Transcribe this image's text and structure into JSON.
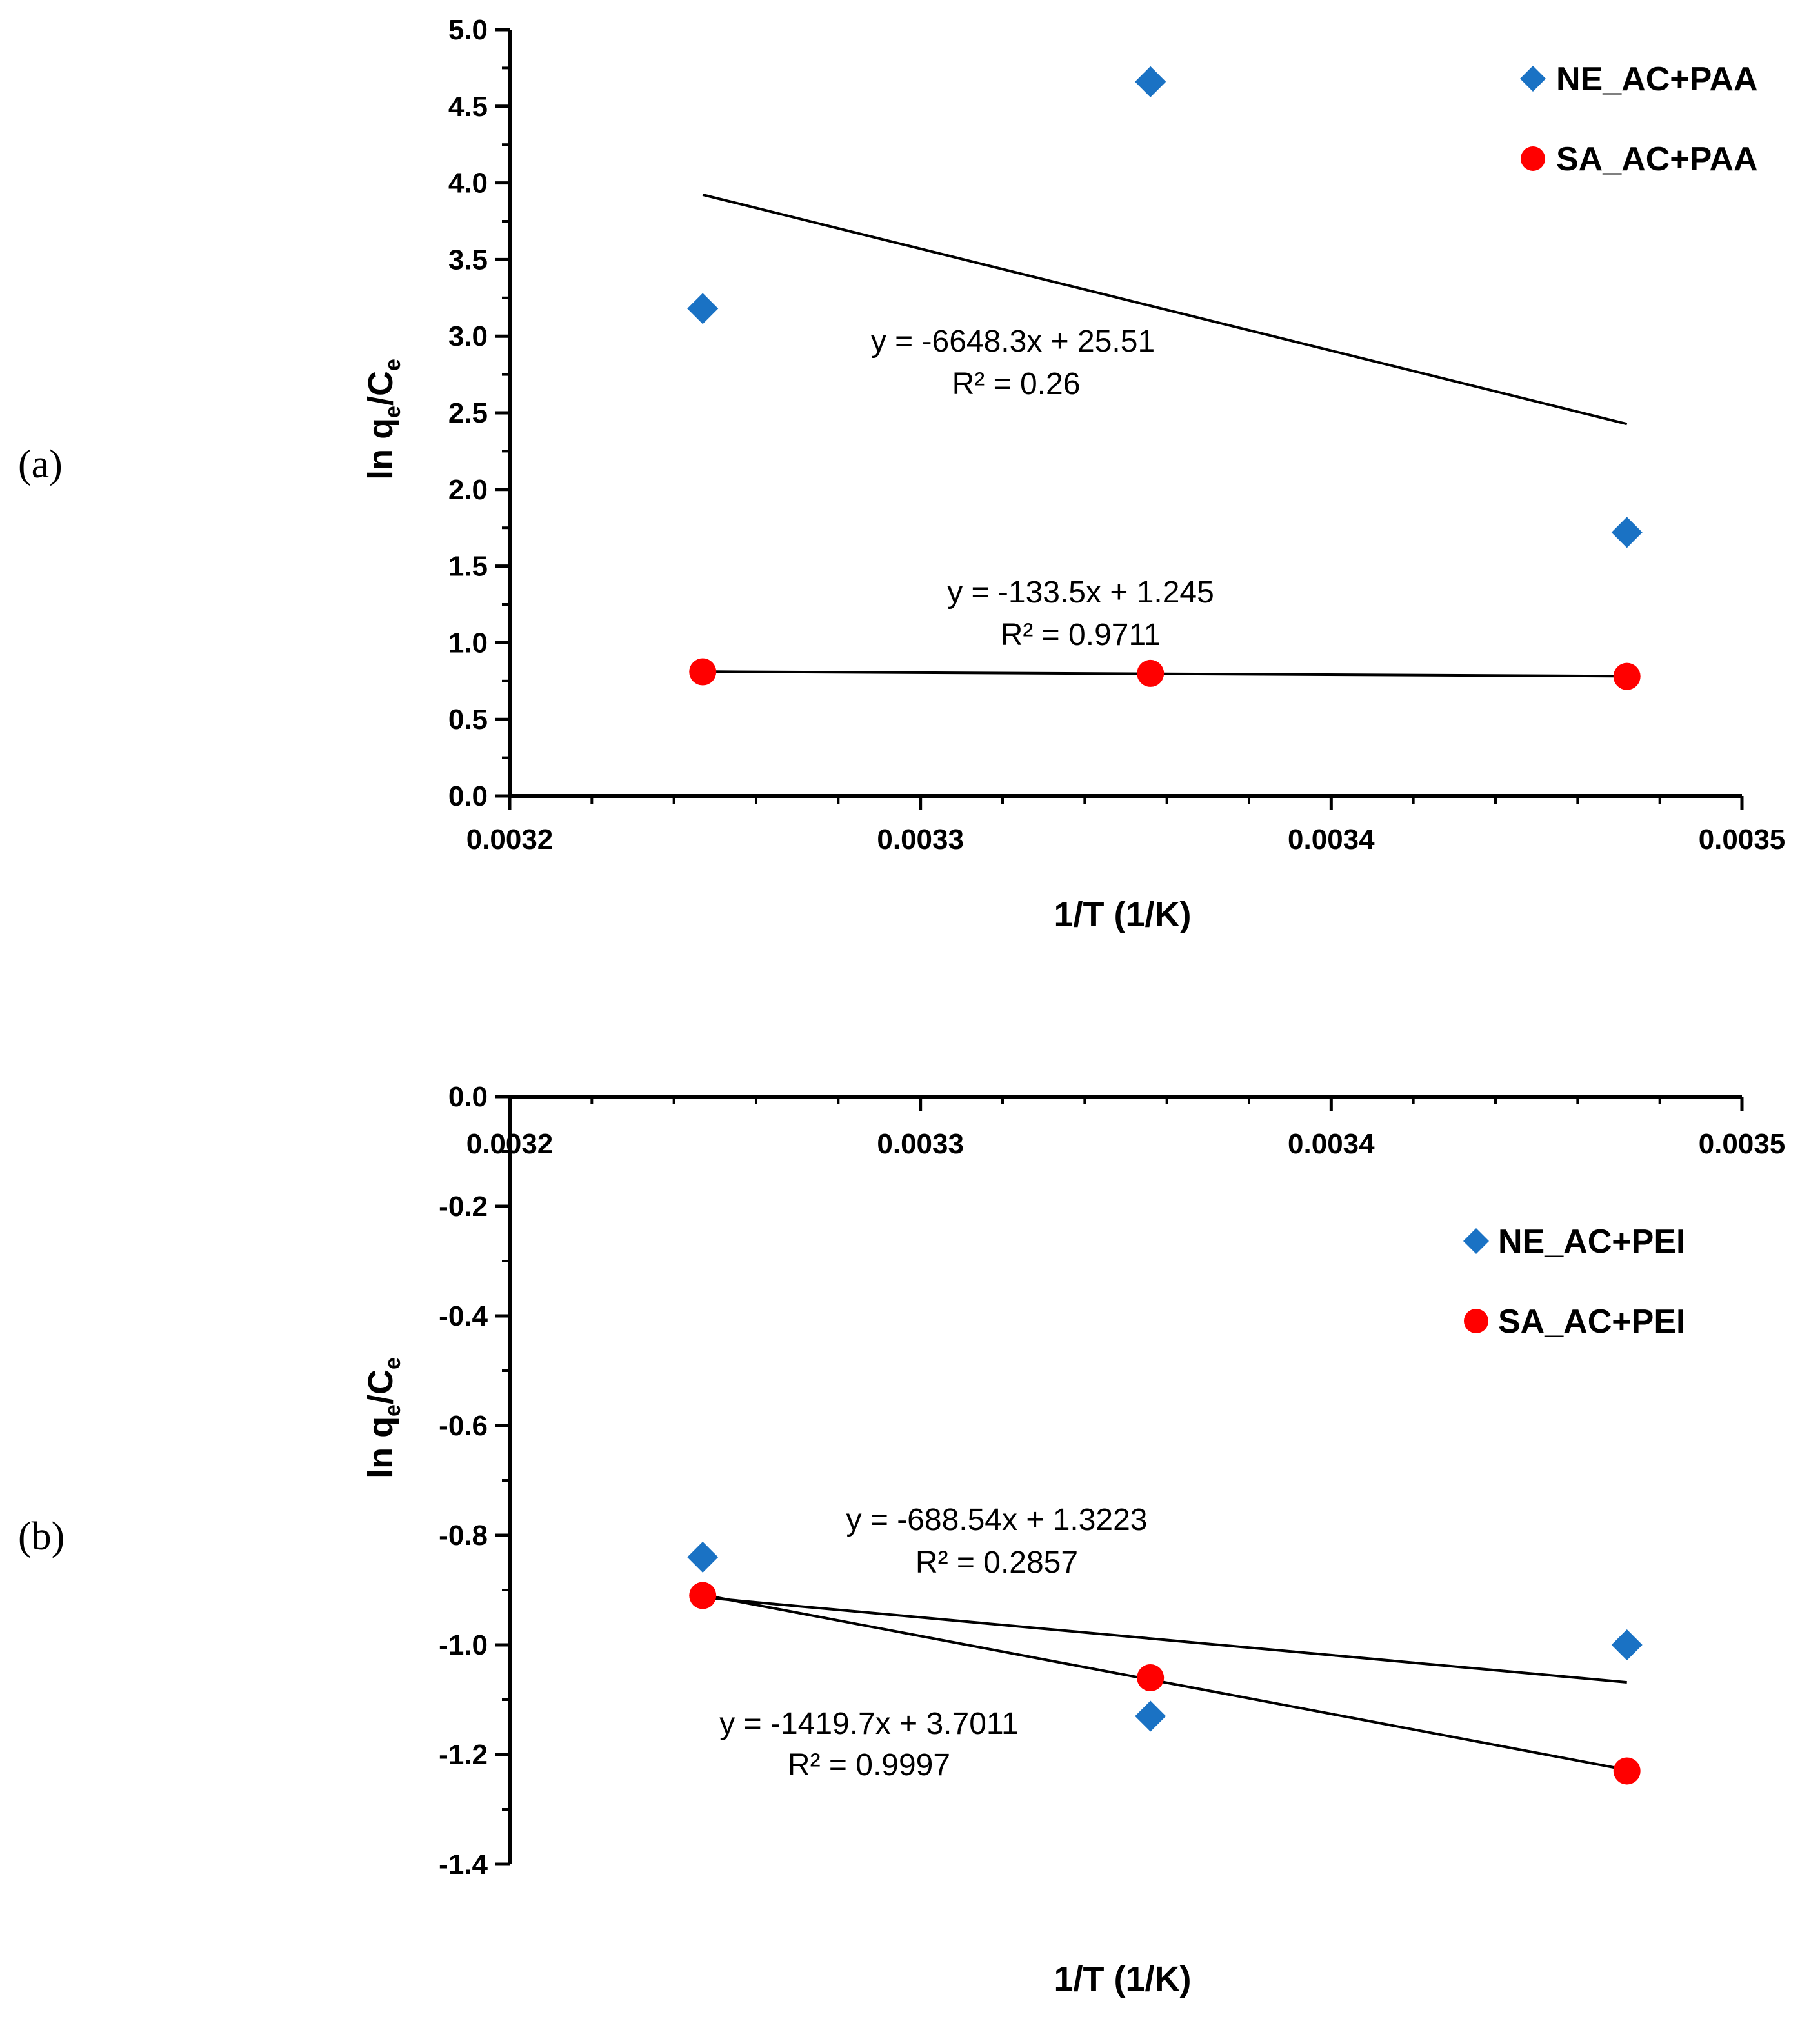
{
  "colors": {
    "series_ne": "#1a72c4",
    "series_sa": "#ff0000",
    "axis": "#000000",
    "trendline": "#000000"
  },
  "chart_data": [
    {
      "type": "scatter",
      "panel_label": "(a)",
      "xlabel": "1/T (1/K)",
      "ylabel_main": "ln q",
      "ylabel_sub1": "e",
      "ylabel_mid": "/C",
      "ylabel_sub2": "e",
      "xlim": [
        0.0032,
        0.0035
      ],
      "ylim": [
        0.0,
        5.0
      ],
      "x_ticks": [
        "0.0032",
        "0.0033",
        "0.0034",
        "0.0035"
      ],
      "y_ticks": [
        "5.0",
        "4.5",
        "4.0",
        "3.5",
        "3.0",
        "2.5",
        "2.0",
        "1.5",
        "1.0",
        "0.5",
        "0.0"
      ],
      "legend_position": "top-right",
      "series": [
        {
          "name": "NE_AC+PAA",
          "marker": "diamond",
          "x": [
            0.003247,
            0.003356,
            0.003472
          ],
          "y": [
            3.18,
            4.66,
            1.72
          ],
          "trendline": {
            "equation": "y = -6648.3x + 25.51",
            "r2": "R² = 0.26",
            "slope": -6648.3,
            "intercept": 25.51
          }
        },
        {
          "name": "SA_AC+PAA",
          "marker": "circle",
          "x": [
            0.003247,
            0.003356,
            0.003472
          ],
          "y": [
            0.81,
            0.8,
            0.78
          ],
          "trendline": {
            "equation": "y = -133.5x + 1.245",
            "r2": "R² = 0.9711",
            "slope": -133.5,
            "intercept": 1.245
          }
        }
      ]
    },
    {
      "type": "scatter",
      "panel_label": "(b)",
      "xlabel": "1/T (1/K)",
      "ylabel_main": "ln q",
      "ylabel_sub1": "e",
      "ylabel_mid": "/C",
      "ylabel_sub2": "e",
      "xlim": [
        0.0032,
        0.0035
      ],
      "ylim": [
        -1.4,
        0.0
      ],
      "x_ticks": [
        "0.0032",
        "0.0033",
        "0.0034",
        "0.0035"
      ],
      "y_ticks": [
        "0.0",
        "-0.2",
        "-0.4",
        "-0.6",
        "-0.8",
        "-1.0",
        "-1.2",
        "-1.4"
      ],
      "legend_position": "top-right",
      "series": [
        {
          "name": "NE_AC+PEI",
          "marker": "diamond",
          "x": [
            0.003247,
            0.003356,
            0.003472
          ],
          "y": [
            -0.84,
            -1.13,
            -1.0
          ],
          "trendline": {
            "equation": "y = -688.54x + 1.3223",
            "r2": "R² = 0.2857",
            "slope": -688.54,
            "intercept": 1.3223
          }
        },
        {
          "name": "SA_AC+PEI",
          "marker": "circle",
          "x": [
            0.003247,
            0.003356,
            0.003472
          ],
          "y": [
            -0.91,
            -1.06,
            -1.23
          ],
          "trendline": {
            "equation": "y = -1419.7x + 3.7011",
            "r2": "R² = 0.9997",
            "slope": -1419.7,
            "intercept": 3.7011
          }
        }
      ]
    }
  ]
}
